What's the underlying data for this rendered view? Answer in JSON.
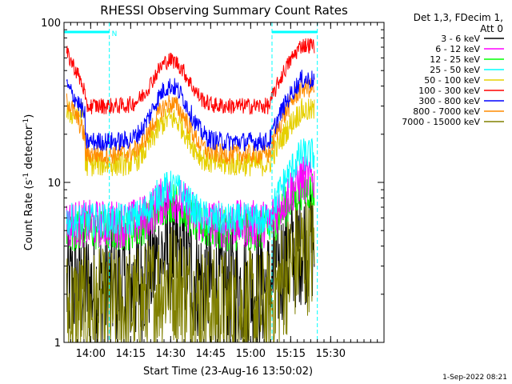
{
  "chart_data": {
    "type": "line",
    "title": "RHESSI Observing Summary Count Rates",
    "xlabel": "Start Time (23-Aug-16 13:50:02)",
    "ylabel_parts": [
      "Count Rate (s",
      "-1",
      " detector",
      "-1",
      ")"
    ],
    "y_scale": "log",
    "ylim": [
      1,
      100
    ],
    "xlim_minutes": [
      0,
      120
    ],
    "x_ticks": [
      {
        "label": "14:00",
        "t": 10
      },
      {
        "label": "14:15",
        "t": 25
      },
      {
        "label": "14:30",
        "t": 40
      },
      {
        "label": "14:45",
        "t": 55
      },
      {
        "label": "15:00",
        "t": 70
      },
      {
        "label": "15:15",
        "t": 85
      },
      {
        "label": "15:30",
        "t": 100
      }
    ],
    "y_tick_labels": [
      {
        "label": "1",
        "value": 1
      },
      {
        "label": "10",
        "value": 10
      },
      {
        "label": "100",
        "value": 100
      }
    ],
    "legend_header": [
      "Det 1,3, FDecim 1,",
      "Att 0"
    ],
    "legend_position": "right",
    "series": [
      {
        "name": "3 - 6 keV",
        "color": "#000000"
      },
      {
        "name": "6 - 12 keV",
        "color": "#ff00ff"
      },
      {
        "name": "12 - 25 keV",
        "color": "#00ff00"
      },
      {
        "name": "25 - 50 keV",
        "color": "#00ffff"
      },
      {
        "name": "50 - 100 keV",
        "color": "#e6d000"
      },
      {
        "name": "100 - 300 keV",
        "color": "#ff0000"
      },
      {
        "name": "300 - 800 keV",
        "color": "#0000ff"
      },
      {
        "name": "800 - 7000 keV",
        "color": "#ff8c00"
      },
      {
        "name": "7000 - 15000 keV",
        "color": "#808000"
      }
    ],
    "flags": [
      {
        "label": "",
        "color": "#00ffff",
        "start": "13:50",
        "end": "14:07"
      },
      {
        "label": "",
        "color": "#00ffff",
        "start": "15:08",
        "end": "15:25"
      }
    ],
    "flag_annotation": "N",
    "timestamp": "1-Sep-2022 08:21"
  }
}
